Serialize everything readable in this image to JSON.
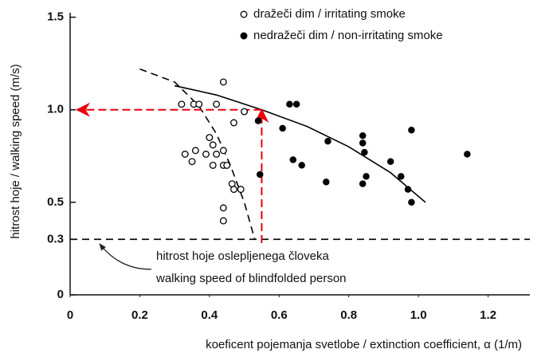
{
  "chart_data": {
    "type": "scatter",
    "x_label": "koeficent pojemanja svetlobe / extinction coefficient, α (1/m)",
    "y_label": "hitrost hoje / walking speed (m/s)",
    "xlim": [
      0,
      1.32
    ],
    "ylim": [
      0,
      1.55
    ],
    "xticks": [
      0,
      0.2,
      0.4,
      0.6,
      0.8,
      {
        "value": 1,
        "label": "1.0"
      },
      1.2
    ],
    "yticks": [
      0,
      0.3,
      0.5,
      {
        "value": 1,
        "label": "1.0"
      },
      1.5
    ],
    "legend": "top-right",
    "series": [
      {
        "name": "dražeči dim / irritating smoke",
        "marker": "open",
        "color": "#000000",
        "x": [
          0.32,
          0.355,
          0.37,
          0.42,
          0.44,
          0.47,
          0.5,
          0.35,
          0.33,
          0.39,
          0.4,
          0.41,
          0.42,
          0.44,
          0.36,
          0.41,
          0.44,
          0.45,
          0.465,
          0.49,
          0.47,
          0.44,
          0.44
        ],
        "y": [
          1.03,
          1.03,
          1.03,
          1.03,
          1.15,
          0.93,
          0.99,
          0.72,
          0.76,
          0.76,
          0.85,
          0.81,
          0.76,
          0.78,
          0.78,
          0.7,
          0.7,
          0.7,
          0.6,
          0.57,
          0.57,
          0.47,
          0.4
        ]
      },
      {
        "name": "nedražeči dim / non-irritating smoke",
        "marker": "filled",
        "color": "#000000",
        "x": [
          0.54,
          0.61,
          0.63,
          0.65,
          0.545,
          0.64,
          0.665,
          0.74,
          0.735,
          0.84,
          0.84,
          0.84,
          0.845,
          0.85,
          0.92,
          0.95,
          0.97,
          0.98,
          0.98,
          1.14
        ],
        "y": [
          0.94,
          0.9,
          1.03,
          1.03,
          0.65,
          0.73,
          0.7,
          0.83,
          0.61,
          0.6,
          0.86,
          0.82,
          0.77,
          0.64,
          0.72,
          0.64,
          0.57,
          0.5,
          0.89,
          0.76
        ]
      }
    ],
    "lines": [
      {
        "style": "solid",
        "color": "#000000",
        "x": [
          0.3,
          0.42,
          0.55,
          0.68,
          0.8,
          0.92,
          1.02
        ],
        "y": [
          1.13,
          1.08,
          1.0,
          0.91,
          0.8,
          0.66,
          0.5
        ]
      },
      {
        "style": "dashed",
        "color": "#000000",
        "x": [
          0.2,
          0.3,
          0.37,
          0.42,
          0.46,
          0.5,
          0.53
        ],
        "y": [
          1.22,
          1.15,
          1.02,
          0.87,
          0.7,
          0.5,
          0.3
        ]
      },
      {
        "style": "dashed",
        "color": "#000000",
        "x": [
          0.0,
          1.32
        ],
        "y": [
          0.3,
          0.3
        ]
      },
      {
        "style": "arrow",
        "color": "#e8000b",
        "x": [
          0.55,
          0.55
        ],
        "y": [
          0.28,
          1.0
        ]
      },
      {
        "style": "arrow",
        "color": "#e8000b",
        "x": [
          0.55,
          0.02
        ],
        "y": [
          1.0,
          1.0
        ]
      }
    ],
    "annotation": [
      "hitrost hoje oslepljenega človeka",
      "walking speed of blindfolded person"
    ]
  }
}
